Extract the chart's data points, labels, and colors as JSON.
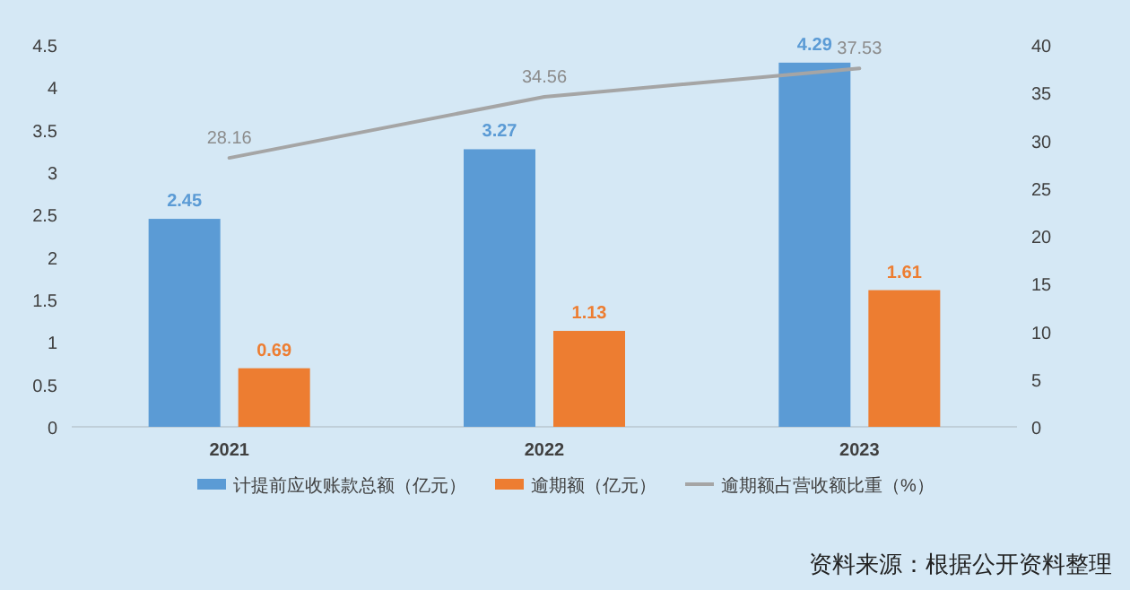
{
  "chart_data": {
    "type": "bar",
    "categories": [
      "2021",
      "2022",
      "2023"
    ],
    "series": [
      {
        "name": "计提前应收账款总额（亿元）",
        "color": "#5b9bd5",
        "values": [
          2.45,
          3.27,
          4.29
        ]
      },
      {
        "name": "逾期额（亿元）",
        "color": "#ed7d31",
        "values": [
          0.69,
          1.13,
          1.61
        ]
      },
      {
        "name": "逾期额占营收额比重（%）",
        "color": "#a5a5a5",
        "type": "line",
        "axis": "y2",
        "values": [
          28.16,
          34.56,
          37.53
        ]
      }
    ],
    "ylim": [
      0,
      4.5
    ],
    "yticks": [
      0,
      0.5,
      1,
      1.5,
      2,
      2.5,
      3,
      3.5,
      4,
      4.5
    ],
    "y2lim": [
      0,
      40
    ],
    "y2ticks": [
      0,
      5,
      10,
      15,
      20,
      25,
      30,
      35,
      40
    ],
    "data_labels": true,
    "grid": false,
    "legend": "bottom",
    "marker": "none",
    "annotations": [
      "资料来源：根据公开资料整理"
    ]
  }
}
